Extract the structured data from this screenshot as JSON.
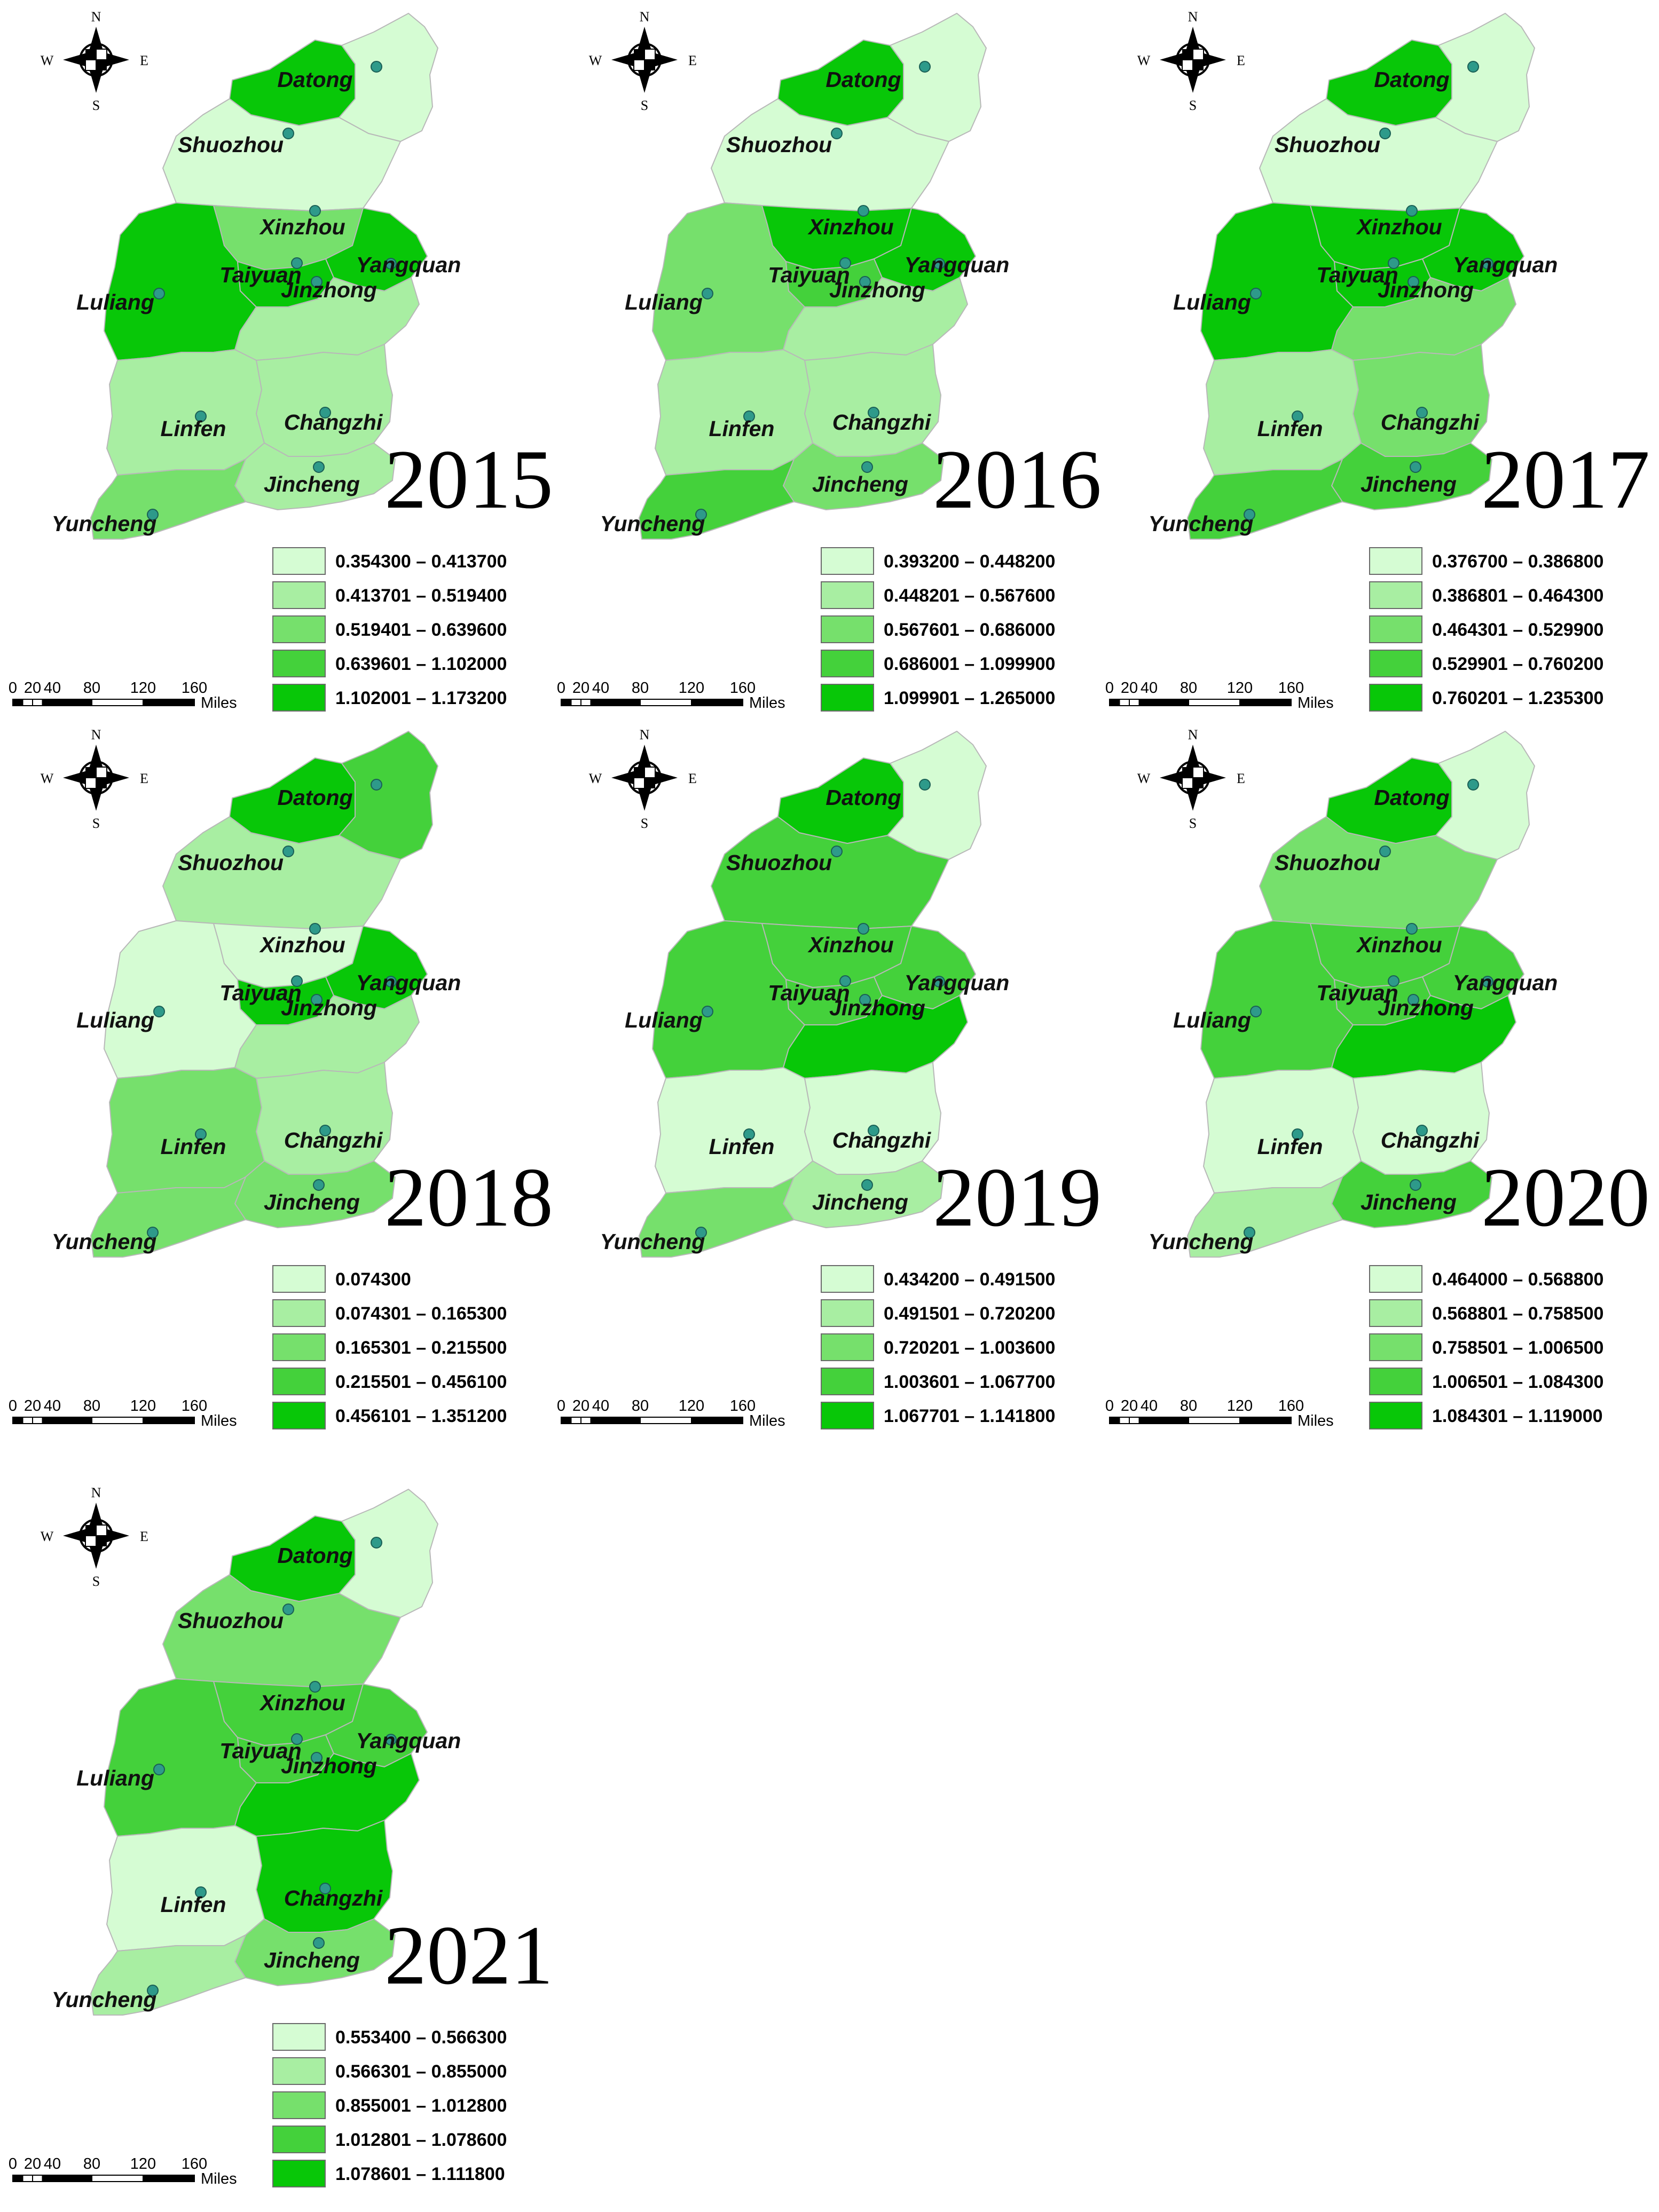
{
  "palette": [
    "#d5fcd3",
    "#a8eea2",
    "#76e06c",
    "#44d13b",
    "#08c708"
  ],
  "scale_bar": {
    "ticks": [
      "0",
      "20",
      "40",
      "80",
      "120",
      "160"
    ],
    "unit": "Miles"
  },
  "compass": {
    "n": "N",
    "s": "S",
    "e": "E",
    "w": "W"
  },
  "cities": [
    "Datong",
    "Shuozhou",
    "Xinzhou",
    "Yangquan",
    "Taiyuan",
    "Jinzhong",
    "Luliang",
    "Linfen",
    "Changzhi",
    "Jincheng",
    "Yuncheng"
  ],
  "panels": [
    {
      "year": "2015",
      "legend": [
        "0.354300 – 0.413700",
        "0.413701 – 0.519400",
        "0.519401 – 0.639600",
        "0.639601 – 1.102000",
        "1.102001 – 1.173200"
      ],
      "classes": {
        "Datong": 4,
        "DatongE": 0,
        "Shuozhou": 0,
        "Xinzhou": 2,
        "Yangquan": 4,
        "Taiyuan": 4,
        "Jinzhong": 1,
        "Luliang": 4,
        "Linfen": 1,
        "Changzhi": 1,
        "Jincheng": 1,
        "Yuncheng": 2
      }
    },
    {
      "year": "2016",
      "legend": [
        "0.393200 – 0.448200",
        "0.448201 – 0.567600",
        "0.567601 – 0.686000",
        "0.686001 – 1.099900",
        "1.099901 – 1.265000"
      ],
      "classes": {
        "Datong": 4,
        "DatongE": 0,
        "Shuozhou": 0,
        "Xinzhou": 4,
        "Yangquan": 4,
        "Taiyuan": 3,
        "Jinzhong": 1,
        "Luliang": 2,
        "Linfen": 1,
        "Changzhi": 1,
        "Jincheng": 2,
        "Yuncheng": 3
      }
    },
    {
      "year": "2017",
      "legend": [
        "0.376700 – 0.386800",
        "0.386801 – 0.464300",
        "0.464301 – 0.529900",
        "0.529901 – 0.760200",
        "0.760201 – 1.235300"
      ],
      "classes": {
        "Datong": 4,
        "DatongE": 0,
        "Shuozhou": 0,
        "Xinzhou": 4,
        "Yangquan": 4,
        "Taiyuan": 4,
        "Jinzhong": 2,
        "Luliang": 4,
        "Linfen": 1,
        "Changzhi": 2,
        "Jincheng": 3,
        "Yuncheng": 3
      }
    },
    {
      "year": "2018",
      "legend": [
        "0.074300",
        "0.074301 – 0.165300",
        "0.165301 – 0.215500",
        "0.215501 – 0.456100",
        "0.456101 – 1.351200"
      ],
      "classes": {
        "Datong": 4,
        "DatongE": 3,
        "Shuozhou": 1,
        "Xinzhou": 0,
        "Yangquan": 4,
        "Taiyuan": 4,
        "Jinzhong": 1,
        "Luliang": 0,
        "Linfen": 2,
        "Changzhi": 1,
        "Jincheng": 2,
        "Yuncheng": 2
      }
    },
    {
      "year": "2019",
      "legend": [
        "0.434200 – 0.491500",
        "0.491501 – 0.720200",
        "0.720201 – 1.003600",
        "1.003601 – 1.067700",
        "1.067701 – 1.141800"
      ],
      "classes": {
        "Datong": 4,
        "DatongE": 0,
        "Shuozhou": 3,
        "Xinzhou": 3,
        "Yangquan": 3,
        "Taiyuan": 3,
        "Jinzhong": 4,
        "Luliang": 3,
        "Linfen": 0,
        "Changzhi": 0,
        "Jincheng": 1,
        "Yuncheng": 2
      }
    },
    {
      "year": "2020",
      "legend": [
        "0.464000 – 0.568800",
        "0.568801 – 0.758500",
        "0.758501 – 1.006500",
        "1.006501 – 1.084300",
        "1.084301 – 1.119000"
      ],
      "classes": {
        "Datong": 4,
        "DatongE": 0,
        "Shuozhou": 2,
        "Xinzhou": 3,
        "Yangquan": 3,
        "Taiyuan": 3,
        "Jinzhong": 4,
        "Luliang": 3,
        "Linfen": 0,
        "Changzhi": 0,
        "Jincheng": 3,
        "Yuncheng": 1
      }
    },
    {
      "year": "2021",
      "legend": [
        "0.553400 – 0.566300",
        "0.566301 – 0.855000",
        "0.855001 – 1.012800",
        "1.012801 – 1.078600",
        "1.078601 – 1.111800"
      ],
      "classes": {
        "Datong": 4,
        "DatongE": 0,
        "Shuozhou": 2,
        "Xinzhou": 3,
        "Yangquan": 3,
        "Taiyuan": 3,
        "Jinzhong": 4,
        "Luliang": 3,
        "Linfen": 0,
        "Changzhi": 4,
        "Jincheng": 2,
        "Yuncheng": 1
      }
    }
  ]
}
